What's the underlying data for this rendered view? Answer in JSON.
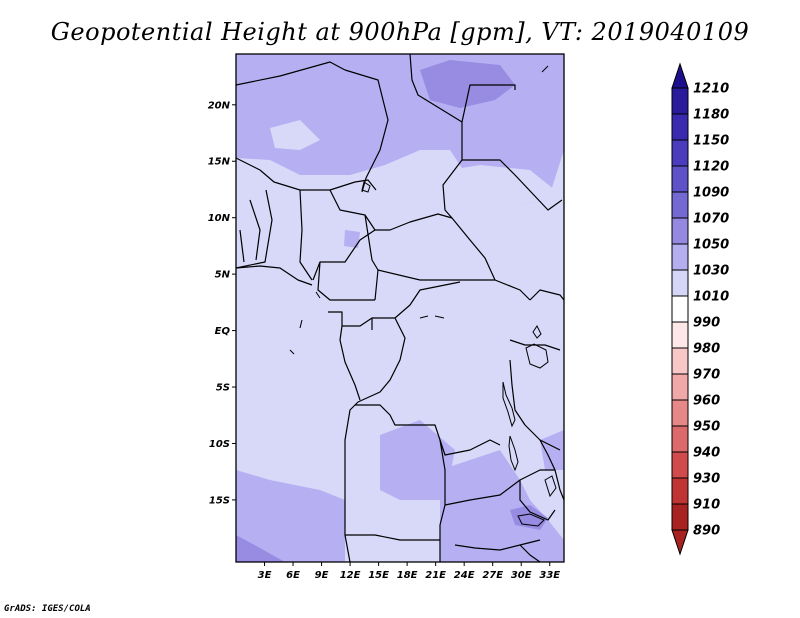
{
  "title": "Geopotential Height at 900hPa [gpm], VT: 2019040109",
  "credit": "GrADS: IGES/COLA",
  "map": {
    "lon_range": [
      0,
      34.5
    ],
    "lat_range": [
      -20.5,
      24.5
    ],
    "x_ticks": [
      {
        "value": 3,
        "label": "3E"
      },
      {
        "value": 6,
        "label": "6E"
      },
      {
        "value": 9,
        "label": "9E"
      },
      {
        "value": 12,
        "label": "12E"
      },
      {
        "value": 15,
        "label": "15E"
      },
      {
        "value": 18,
        "label": "18E"
      },
      {
        "value": 21,
        "label": "21E"
      },
      {
        "value": 24,
        "label": "24E"
      },
      {
        "value": 27,
        "label": "27E"
      },
      {
        "value": 30,
        "label": "30E"
      },
      {
        "value": 33,
        "label": "33E"
      }
    ],
    "y_ticks": [
      {
        "value": 20,
        "label": "20N"
      },
      {
        "value": 15,
        "label": "15N"
      },
      {
        "value": 10,
        "label": "10N"
      },
      {
        "value": 5,
        "label": "5N"
      },
      {
        "value": 0,
        "label": "EQ"
      },
      {
        "value": -5,
        "label": "5S"
      },
      {
        "value": -10,
        "label": "10S"
      },
      {
        "value": -15,
        "label": "15S"
      }
    ]
  },
  "colorbar": {
    "levels": [
      {
        "label": "1210",
        "color": "#1e0f8c"
      },
      {
        "label": "1180",
        "color": "#2a1a9c"
      },
      {
        "label": "1150",
        "color": "#3a2aae"
      },
      {
        "label": "1120",
        "color": "#4b3cbd"
      },
      {
        "label": "1090",
        "color": "#5e52c8"
      },
      {
        "label": "1070",
        "color": "#7468d2"
      },
      {
        "label": "1050",
        "color": "#9488e0"
      },
      {
        "label": "1030",
        "color": "#b5aff0"
      },
      {
        "label": "1010",
        "color": "#d5d5f8"
      },
      {
        "label": "990",
        "color": "#ffffff"
      },
      {
        "label": "980",
        "color": "#fde7e7"
      },
      {
        "label": "970",
        "color": "#f8c8c8"
      },
      {
        "label": "960",
        "color": "#f0a8a8"
      },
      {
        "label": "950",
        "color": "#e68888"
      },
      {
        "label": "940",
        "color": "#dc6a6a"
      },
      {
        "label": "930",
        "color": "#d04c4c"
      },
      {
        "label": "910",
        "color": "#c03434"
      },
      {
        "label": "890",
        "color": "#a82222"
      }
    ],
    "bottom_color": "#a82222",
    "top_color": "#1e0f8c"
  }
}
